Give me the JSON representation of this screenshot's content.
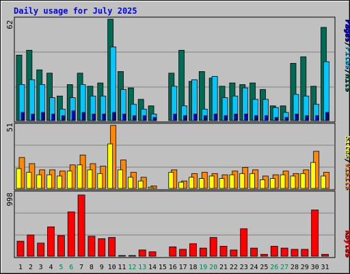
{
  "chart_data": [
    {
      "panel": "hits-files-pages",
      "type": "bar",
      "title": "Daily usage for July 2025",
      "ymax_label": "62",
      "categories": [
        "1",
        "2",
        "3",
        "4",
        "5",
        "6",
        "7",
        "8",
        "9",
        "10",
        "11",
        "12",
        "13",
        "14",
        "15",
        "16",
        "17",
        "18",
        "19",
        "20",
        "21",
        "22",
        "23",
        "24",
        "25",
        "26",
        "27",
        "28",
        "29",
        "30",
        "31"
      ],
      "weekend_days": [
        5,
        6,
        12,
        13,
        19,
        20,
        26,
        27
      ],
      "ylim": [
        0,
        62
      ],
      "legend": [
        "Pages",
        "/",
        "Files",
        "/",
        "Hits"
      ],
      "series": [
        {
          "name": "Hits",
          "values": [
            40,
            43,
            31,
            29,
            15,
            22,
            29,
            21,
            23,
            62,
            30,
            20,
            13,
            9,
            0,
            29,
            43,
            24,
            30,
            26,
            21,
            23,
            22,
            23,
            19,
            9,
            9,
            35,
            39,
            21,
            57
          ]
        },
        {
          "name": "Files",
          "values": [
            22,
            25,
            22,
            14,
            7,
            14,
            22,
            15,
            15,
            45,
            19,
            10,
            7,
            4,
            0,
            21,
            9,
            25,
            7,
            27,
            14,
            15,
            20,
            13,
            13,
            8,
            5,
            16,
            15,
            10,
            36
          ]
        },
        {
          "name": "Pages",
          "values": [
            5,
            4,
            5,
            4,
            3,
            6,
            5,
            4,
            4,
            5,
            4,
            3,
            3,
            2,
            0,
            4,
            3,
            4,
            3,
            4,
            3,
            4,
            4,
            3,
            3,
            2,
            2,
            4,
            3,
            3,
            5
          ]
        }
      ],
      "colors": {
        "Hits": "#006b54",
        "Files": "#00c8ff",
        "Pages": "#0000d0"
      }
    },
    {
      "panel": "visits-sites",
      "type": "bar",
      "ymax_label": "51",
      "ylim": [
        0,
        51
      ],
      "legend": [
        "Sites",
        "/",
        "Visits"
      ],
      "series": [
        {
          "name": "Visits",
          "values": [
            25,
            20,
            15,
            15,
            14,
            19,
            27,
            20,
            18,
            51,
            23,
            13,
            9,
            2,
            0,
            15,
            6,
            12,
            13,
            12,
            11,
            14,
            17,
            15,
            10,
            11,
            14,
            12,
            15,
            30,
            13
          ]
        },
        {
          "name": "Sites",
          "values": [
            16,
            13,
            11,
            11,
            10,
            14,
            19,
            15,
            12,
            36,
            15,
            9,
            6,
            1,
            0,
            13,
            5,
            9,
            8,
            10,
            8,
            11,
            12,
            12,
            7,
            8,
            11,
            10,
            12,
            21,
            10
          ]
        }
      ],
      "colors": {
        "Visits": "#ff8800",
        "Sites": "#ffff00"
      }
    },
    {
      "panel": "kbytes",
      "type": "bar",
      "ymax_label": "998",
      "ylim": [
        0,
        998
      ],
      "legend": [
        "KBytes"
      ],
      "series": [
        {
          "name": "KBytes",
          "values": [
            240,
            340,
            210,
            470,
            330,
            710,
            980,
            320,
            280,
            300,
            10,
            10,
            100,
            70,
            0,
            150,
            110,
            200,
            130,
            300,
            160,
            100,
            440,
            130,
            30,
            160,
            130,
            110,
            110,
            740,
            30
          ]
        }
      ],
      "colors": {
        "KBytes": "#ff0000"
      }
    }
  ]
}
